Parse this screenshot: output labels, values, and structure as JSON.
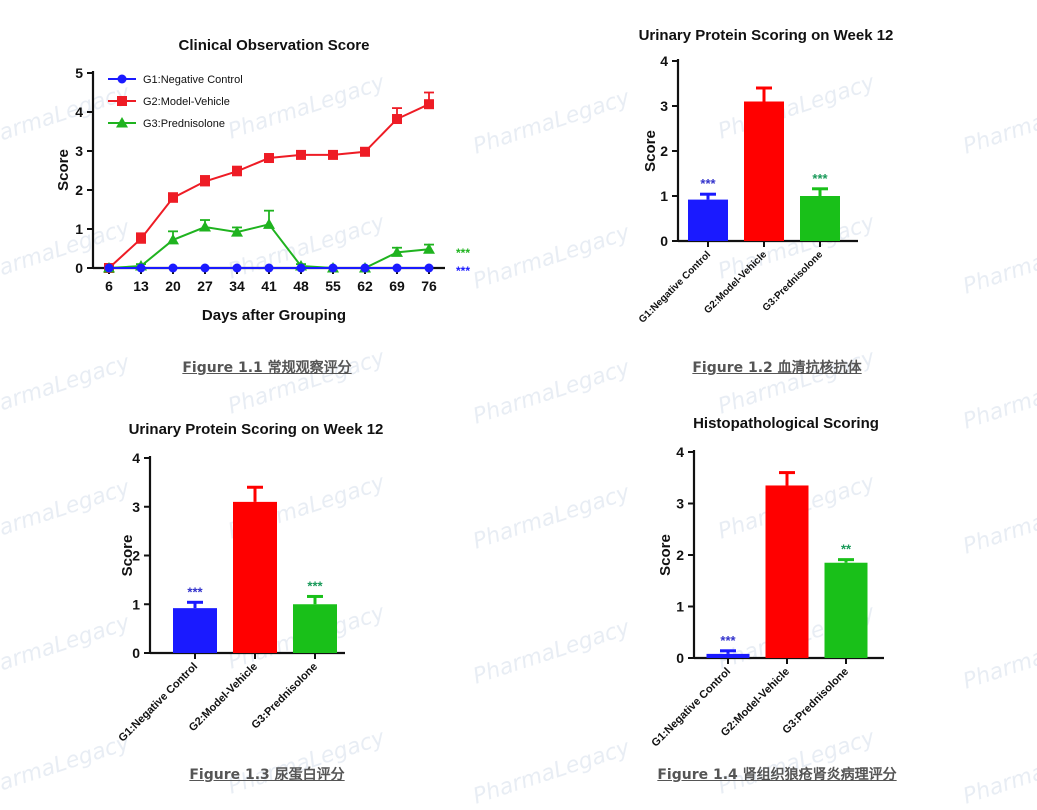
{
  "watermark": "PharmaLegacy",
  "figures": [
    {
      "caption": "Figure 1.1 常规观察评分"
    },
    {
      "caption": "Figure 1.2 血清抗核抗体"
    },
    {
      "caption": "Figure 1.3 尿蛋白评分"
    },
    {
      "caption": "Figure 1.4 肾组织狼疮肾炎病理评分"
    }
  ],
  "chart_data": [
    {
      "type": "line",
      "title": "Clinical Observation Score",
      "xlabel": "Days after Grouping",
      "ylabel": "Score",
      "x": [
        6,
        13,
        20,
        27,
        34,
        41,
        48,
        55,
        62,
        69,
        76
      ],
      "ylim": [
        0,
        5
      ],
      "yticks": [
        0,
        1,
        2,
        3,
        4,
        5
      ],
      "legend_position": "top-left",
      "series": [
        {
          "name": "G1:Negative Control",
          "color": "#1a1aff",
          "marker": "circle",
          "values": [
            0,
            0,
            0,
            0,
            0,
            0,
            0,
            0,
            0,
            0,
            0
          ],
          "errors": [
            0,
            0,
            0,
            0,
            0,
            0,
            0,
            0,
            0,
            0,
            0
          ],
          "annotation": "***"
        },
        {
          "name": "G2:Model-Vehicle",
          "color": "#ee1c25",
          "marker": "square",
          "values": [
            0,
            0.75,
            1.8,
            2.22,
            2.48,
            2.82,
            2.9,
            2.9,
            2.98,
            3.82,
            4.2
          ],
          "errors": [
            0,
            0.14,
            0.12,
            0.14,
            0.12,
            0.07,
            0.05,
            0.05,
            0.05,
            0.28,
            0.3
          ]
        },
        {
          "name": "G3:Prednisolone",
          "color": "#1fb31f",
          "marker": "triangle",
          "values": [
            0,
            0.05,
            0.72,
            1.05,
            0.92,
            1.12,
            0.05,
            0,
            0,
            0.4,
            0.48
          ],
          "errors": [
            0,
            0.05,
            0.22,
            0.18,
            0.12,
            0.35,
            0.05,
            0,
            0,
            0.12,
            0.12
          ],
          "annotation": "***"
        }
      ]
    },
    {
      "type": "bar",
      "title": "Urinary Protein Scoring on Week 12",
      "ylabel": "Score",
      "categories": [
        "G1:Negative Control",
        "G2:Model-Vehicle",
        "G3:Prednisolone"
      ],
      "values": [
        0.92,
        3.1,
        1.0
      ],
      "errors": [
        0.12,
        0.3,
        0.16
      ],
      "colors": [
        "#1a1aff",
        "#ff0000",
        "#19c019"
      ],
      "annotations": [
        "***",
        "",
        "***"
      ],
      "annotation_colors": [
        "#3333cc",
        "",
        "#1a9a5a"
      ],
      "ylim": [
        0,
        4
      ],
      "yticks": [
        0,
        1,
        2,
        3,
        4
      ]
    },
    {
      "type": "bar",
      "title": "Urinary Protein Scoring on Week 12",
      "ylabel": "Score",
      "categories": [
        "G1:Negative Control",
        "G2:Model-Vehicle",
        "G3:Prednisolone"
      ],
      "values": [
        0.92,
        3.1,
        1.0
      ],
      "errors": [
        0.12,
        0.3,
        0.16
      ],
      "colors": [
        "#1a1aff",
        "#ff0000",
        "#19c019"
      ],
      "annotations": [
        "***",
        "",
        "***"
      ],
      "annotation_colors": [
        "#3333cc",
        "",
        "#1a9a5a"
      ],
      "ylim": [
        0,
        4
      ],
      "yticks": [
        0,
        1,
        2,
        3,
        4
      ]
    },
    {
      "type": "bar",
      "title": "Histopathological Scoring",
      "ylabel": "Score",
      "categories": [
        "G1:Negative Control",
        "G2:Model-Vehicle",
        "G3:Prednisolone"
      ],
      "values": [
        0.08,
        3.35,
        1.85
      ],
      "errors": [
        0.06,
        0.25,
        0.06
      ],
      "colors": [
        "#1a1aff",
        "#ff0000",
        "#19c019"
      ],
      "annotations": [
        "***",
        "",
        "**"
      ],
      "annotation_colors": [
        "#3333cc",
        "",
        "#1a9a5a"
      ],
      "ylim": [
        0,
        4
      ],
      "yticks": [
        0,
        1,
        2,
        3,
        4
      ]
    }
  ]
}
